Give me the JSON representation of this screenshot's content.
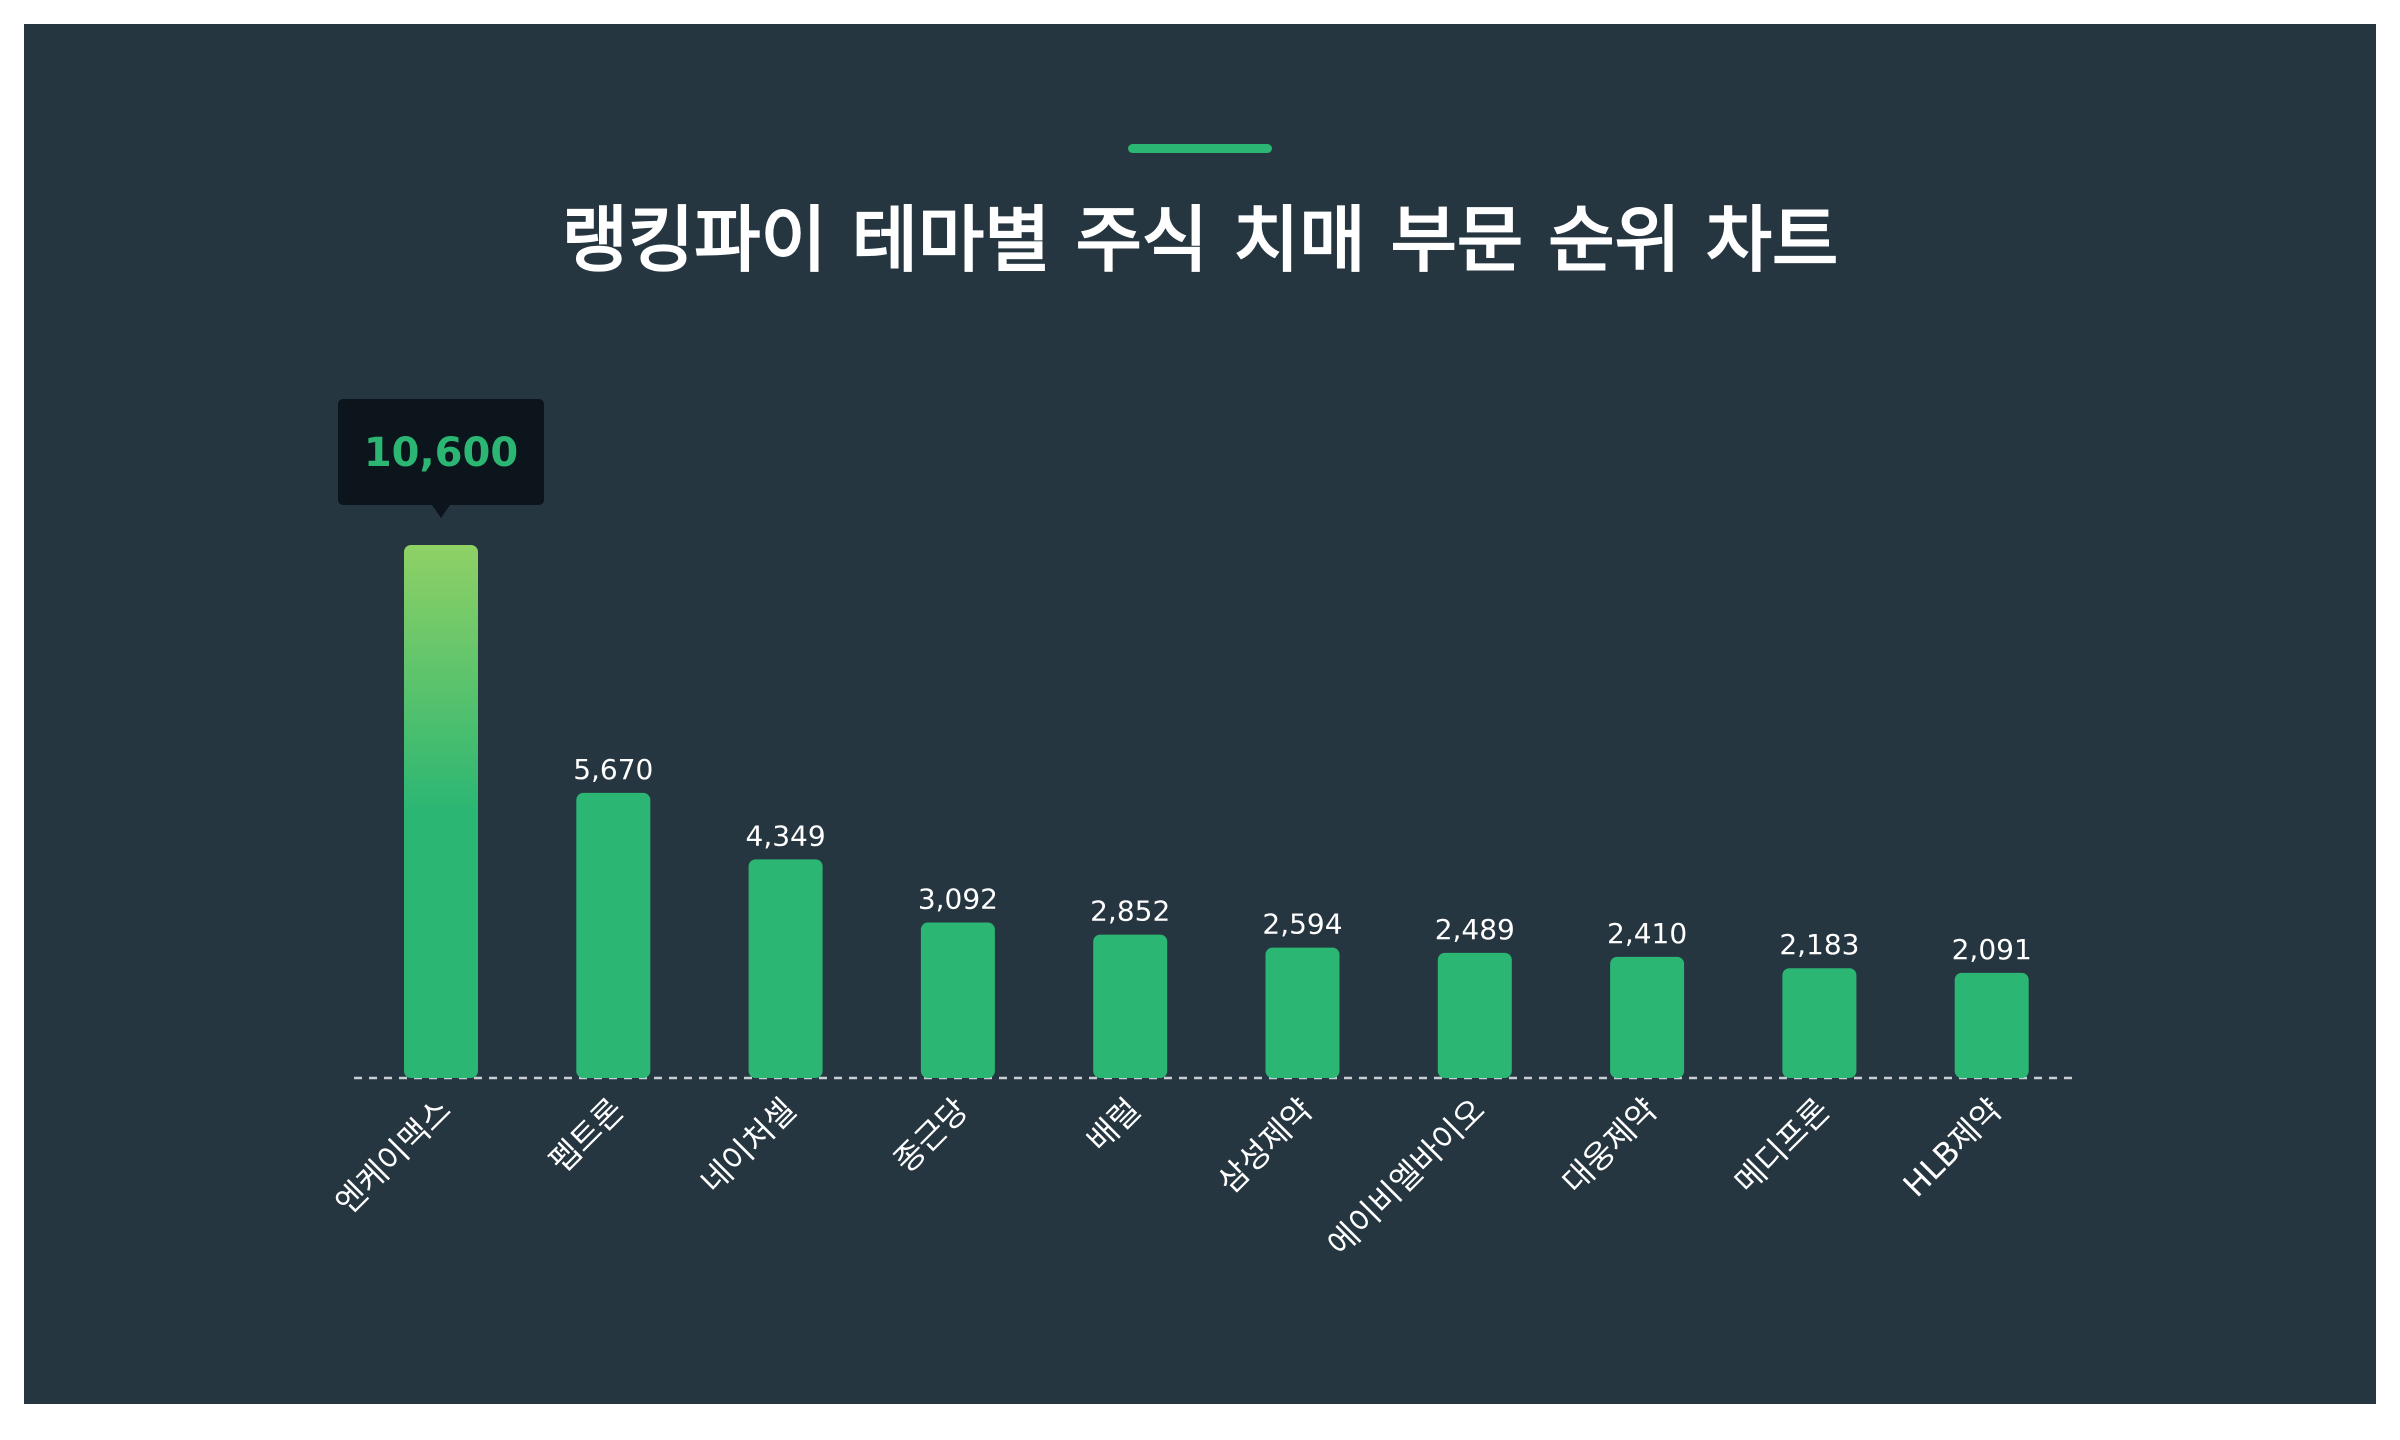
{
  "chart_data": {
    "type": "bar",
    "title": "랭킹파이 테마별 주식 치매 부문 순위 차트",
    "categories": [
      "엔케이맥스",
      "펩트론",
      "네이처셀",
      "종근당",
      "배럴",
      "삼성제약",
      "에이비엘바이오",
      "대웅제약",
      "메디프론",
      "HLB제약"
    ],
    "values": [
      10600,
      5670,
      4349,
      3092,
      2852,
      2594,
      2489,
      2410,
      2183,
      2091
    ],
    "value_labels": [
      "10,600",
      "5,670",
      "4,349",
      "3,092",
      "2,852",
      "2,594",
      "2,489",
      "2,410",
      "2,183",
      "2,091"
    ],
    "xlabel": "",
    "ylabel": "",
    "ylim": [
      0,
      10600
    ],
    "grid": false,
    "legend": "none",
    "highlight_index": 0,
    "colors": {
      "background": "#263641",
      "bar": "#2bb673",
      "bar_highlight_top": "#8fd165",
      "tooltip_bg": "#0d151c",
      "tooltip_text": "#2bb673",
      "baseline": "#c8ced3"
    }
  }
}
